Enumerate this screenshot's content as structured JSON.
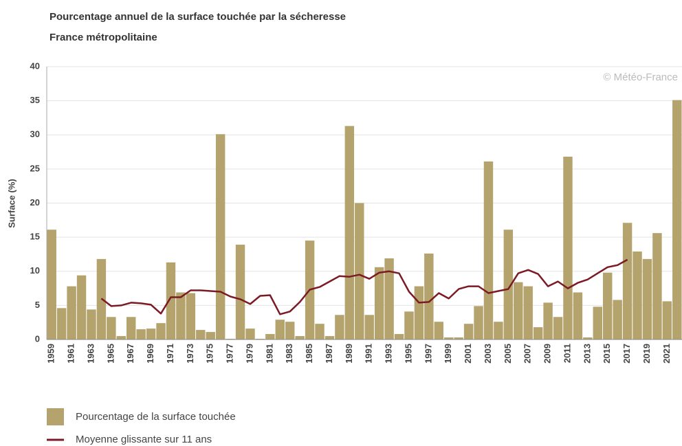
{
  "chart_data": {
    "type": "bar",
    "title": "Pourcentage annuel de la surface touchée par la sécheresse",
    "subtitle": "France métropolitaine",
    "y_label": "Surface (%)",
    "source": "© Météo-France",
    "categories": [
      "1959",
      null,
      "1961",
      null,
      "1963",
      null,
      "1965",
      null,
      "1967",
      null,
      "1969",
      null,
      "1971",
      null,
      "1973",
      null,
      "1975",
      null,
      "1977",
      null,
      "1979",
      null,
      "1981",
      null,
      "1983",
      null,
      "1985",
      null,
      "1987",
      null,
      "1989",
      null,
      "1991",
      null,
      "1993",
      null,
      "1995",
      null,
      "1997",
      null,
      "1999",
      null,
      "2001",
      null,
      "2003",
      null,
      "2005",
      null,
      "2007",
      null,
      "2009",
      null,
      "2011",
      null,
      "2013",
      null,
      "2015",
      null,
      "2017",
      null,
      "2019",
      null,
      "2021",
      null
    ],
    "series": [
      {
        "name": "Pourcentage de la surface touchée",
        "type": "bar",
        "color": "#b5a36e",
        "values": [
          16.1,
          4.6,
          7.8,
          9.4,
          4.4,
          11.8,
          3.3,
          0.5,
          3.3,
          1.5,
          1.6,
          2.4,
          11.3,
          6.9,
          6.8,
          1.4,
          1.1,
          30.1,
          0.1,
          13.9,
          1.6,
          0.1,
          0.8,
          2.9,
          2.6,
          0.5,
          14.5,
          2.3,
          0.5,
          3.6,
          31.3,
          20.0,
          3.6,
          10.6,
          11.9,
          0.8,
          4.1,
          7.8,
          12.6,
          2.6,
          0.3,
          0.3,
          2.3,
          4.9,
          26.1,
          2.6,
          16.1,
          8.4,
          7.8,
          1.8,
          5.4,
          3.3,
          26.8,
          6.9,
          0.3,
          4.8,
          9.8,
          5.8,
          17.1,
          12.9,
          11.8,
          15.6,
          5.6,
          35.1
        ]
      },
      {
        "name": "Moyenne glissante sur 11 ans",
        "type": "line",
        "color": "#7b1a24",
        "values": [
          null,
          null,
          null,
          null,
          null,
          6.0,
          4.9,
          5.0,
          5.4,
          5.3,
          5.1,
          3.8,
          6.2,
          6.2,
          7.2,
          7.2,
          7.1,
          7.0,
          6.3,
          5.9,
          5.2,
          6.4,
          6.5,
          3.7,
          4.1,
          5.5,
          7.3,
          7.7,
          8.5,
          9.3,
          9.2,
          9.5,
          8.9,
          9.8,
          10.0,
          9.7,
          7.0,
          5.4,
          5.5,
          6.8,
          6.0,
          7.4,
          7.8,
          7.8,
          6.8,
          7.1,
          7.4,
          9.7,
          10.2,
          9.6,
          7.8,
          8.5,
          7.5,
          8.3,
          8.8,
          9.7,
          10.6,
          10.9,
          11.7,
          null,
          null,
          null,
          null,
          null
        ]
      }
    ],
    "ylim": [
      0,
      40
    ],
    "yticks": [
      0,
      5,
      10,
      15,
      20,
      25,
      30,
      35,
      40
    ],
    "grid": true
  }
}
